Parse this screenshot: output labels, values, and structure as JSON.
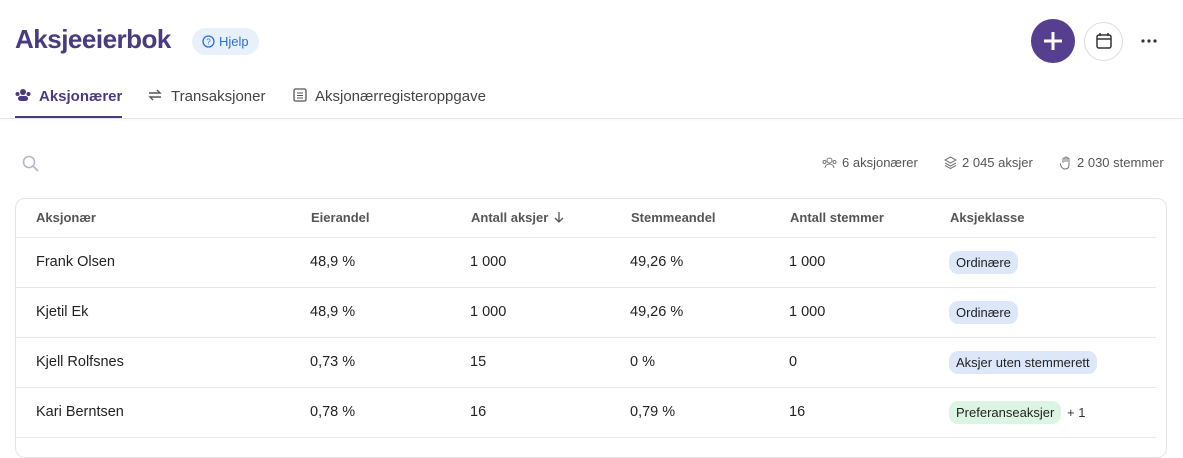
{
  "header": {
    "title": "Aksjeeierbok",
    "help": "Hjelp"
  },
  "tabs": [
    "Aksjonærer",
    "Transaksjoner",
    "Aksjonærregisteroppgave"
  ],
  "stats": [
    "6 aksjonærer",
    "2 045 aksjer",
    "2 030 stemmer"
  ],
  "table": {
    "columns": [
      "Aksjonær",
      "Eierandel",
      "Antall aksjer",
      "Stemmeandel",
      "Antall stemmer",
      "Aksjeklasse"
    ],
    "rows": [
      {
        "cells": [
          "Frank Olsen",
          "48,9 %",
          "1 000",
          "49,26 %",
          "1 000"
        ],
        "classes": [
          {
            "label": "Ordinære",
            "color": "#dce8fa"
          }
        ]
      },
      {
        "cells": [
          "Kjetil Ek",
          "48,9 %",
          "1 000",
          "49,26 %",
          "1 000"
        ],
        "classes": [
          {
            "label": "Ordinære",
            "color": "#dce8fa"
          }
        ]
      },
      {
        "cells": [
          "Kjell Rolfsnes",
          "0,73 %",
          "15",
          "0 %",
          "0"
        ],
        "classes": [
          {
            "label": "Aksjer uten stemmerett",
            "color": "#dce8fa"
          }
        ]
      },
      {
        "cells": [
          "Kari Berntsen",
          "0,78 %",
          "16",
          "0,79 %",
          "16"
        ],
        "classes": [
          {
            "label": "Preferanseaksjer",
            "color": "#dcf5e3"
          }
        ],
        "extra": "+ 1"
      }
    ]
  }
}
